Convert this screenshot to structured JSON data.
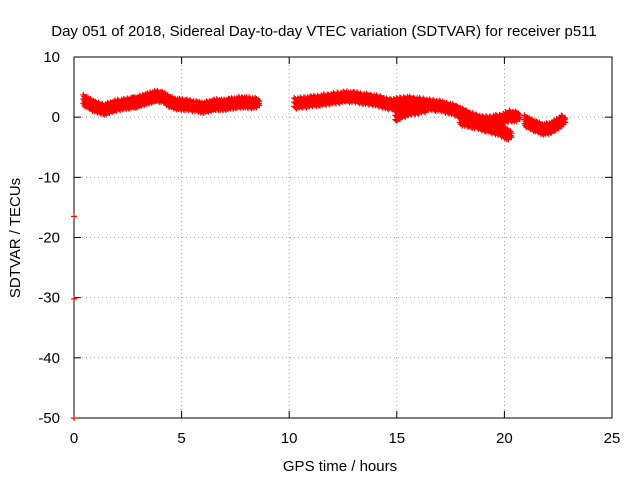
{
  "chart_data": {
    "type": "scatter",
    "title": "Day 051 of 2018, Sidereal Day-to-day VTEC variation (SDTVAR) for receiver p511",
    "xlabel": "GPS time / hours",
    "ylabel": "SDTVAR / TECUs",
    "xlim": [
      0,
      25
    ],
    "ylim": [
      -50,
      10
    ],
    "xticks": [
      0,
      5,
      10,
      15,
      20,
      25
    ],
    "yticks": [
      -50,
      -40,
      -30,
      -20,
      -10,
      0,
      10
    ],
    "xtick_labels": [
      "0",
      "5",
      "10",
      "15",
      "20",
      "25"
    ],
    "ytick_labels": [
      "-50",
      "-40",
      "-30",
      "-20",
      "-10",
      "0",
      "10"
    ],
    "grid": true,
    "marker": "+",
    "color": "#ff0000",
    "series": [
      {
        "name": "SDTVAR",
        "segments": [
          {
            "x": [
              0.5,
              0.8,
              1.1,
              1.5,
              1.8,
              2.1,
              2.5,
              2.8,
              3.0,
              3.3,
              3.6,
              3.9,
              4.2,
              4.5,
              4.8,
              5.1,
              5.4,
              5.8,
              6.1,
              6.4,
              6.7,
              7.0,
              7.3,
              7.6,
              7.9,
              8.2,
              8.6
            ],
            "y": [
              2.8,
              2.2,
              1.6,
              1.3,
              1.7,
              2.0,
              2.2,
              2.4,
              2.5,
              2.9,
              3.2,
              3.5,
              3.3,
              2.6,
              2.2,
              2.1,
              2.0,
              1.7,
              1.6,
              1.9,
              2.1,
              2.0,
              2.2,
              2.4,
              2.5,
              2.4,
              2.3
            ]
          },
          {
            "x": [
              10.3,
              10.7,
              11.1,
              11.5,
              11.9,
              12.3,
              12.7,
              13.1,
              13.5,
              13.9,
              14.3,
              14.7,
              15.1,
              15.5,
              15.9,
              16.3,
              16.7,
              17.1,
              17.5,
              17.9,
              18.3,
              18.7,
              19.1,
              19.5,
              19.9,
              20.3,
              20.7
            ],
            "y": [
              2.3,
              2.4,
              2.6,
              2.8,
              3.0,
              3.2,
              3.4,
              3.3,
              3.1,
              2.9,
              2.6,
              2.1,
              2.3,
              2.6,
              2.4,
              2.2,
              2.0,
              1.8,
              1.5,
              1.0,
              0.2,
              -0.4,
              -0.8,
              -0.6,
              -0.4,
              0.2,
              0.0
            ]
          },
          {
            "x": [
              18.0,
              18.4,
              18.8,
              19.2,
              19.6,
              20.0,
              20.3
            ],
            "y": [
              -0.4,
              -0.8,
              -1.1,
              -1.5,
              -1.9,
              -2.4,
              -3.1
            ]
          },
          {
            "x": [
              15.0,
              15.3,
              15.7,
              16.1,
              16.5
            ],
            "y": [
              0.1,
              0.8,
              1.2,
              1.5,
              1.8
            ]
          },
          {
            "x": [
              21.0,
              21.3,
              21.6,
              21.9,
              22.2,
              22.5,
              22.8
            ],
            "y": [
              -0.6,
              -1.2,
              -1.7,
              -2.0,
              -1.8,
              -1.2,
              -0.4
            ]
          },
          {
            "x": [
              0,
              0,
              0
            ],
            "y": [
              -16.5,
              -30.2,
              -50.0
            ]
          }
        ]
      }
    ]
  }
}
